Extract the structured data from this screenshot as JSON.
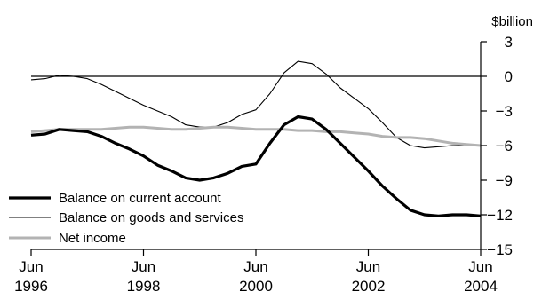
{
  "chart_data": {
    "type": "line",
    "y_unit": "$billion",
    "ylim": [
      -15,
      3
    ],
    "y_ticks": [
      3,
      0,
      -3,
      -6,
      -9,
      -12,
      -15
    ],
    "y_tick_labels": [
      "3",
      "0",
      "−3",
      "−6",
      "−9",
      "−12",
      "−15"
    ],
    "x_range": [
      1996.5,
      2004.5
    ],
    "x_ticks": [
      1996.5,
      1998.5,
      2000.5,
      2002.5,
      2004.5
    ],
    "x_tick_month": [
      "Jun",
      "Jun",
      "Jun",
      "Jun",
      "Jun"
    ],
    "x_tick_year": [
      "1996",
      "1998",
      "2000",
      "2002",
      "2004"
    ],
    "zero_line": true,
    "grid": false,
    "legend_placement": "bottom-left",
    "x": [
      1996.5,
      1996.75,
      1997.0,
      1997.25,
      1997.5,
      1997.75,
      1998.0,
      1998.25,
      1998.5,
      1998.75,
      1999.0,
      1999.25,
      1999.5,
      1999.75,
      2000.0,
      2000.25,
      2000.5,
      2000.75,
      2001.0,
      2001.25,
      2001.5,
      2001.75,
      2002.0,
      2002.25,
      2002.5,
      2002.75,
      2003.0,
      2003.25,
      2003.5,
      2003.75,
      2004.0,
      2004.25,
      2004.5
    ],
    "series": [
      {
        "name": "Balance on current account",
        "color": "#000000",
        "weight": "thick",
        "values": [
          -5.1,
          -5.0,
          -4.6,
          -4.7,
          -4.8,
          -5.2,
          -5.8,
          -6.3,
          -6.9,
          -7.7,
          -8.2,
          -8.8,
          -9.0,
          -8.8,
          -8.4,
          -7.8,
          -7.6,
          -5.8,
          -4.2,
          -3.5,
          -3.7,
          -4.6,
          -5.8,
          -7.0,
          -8.2,
          -9.5,
          -10.6,
          -11.6,
          -12.0,
          -12.1,
          -12.0,
          -12.0,
          -12.1
        ]
      },
      {
        "name": "Balance on goods and services",
        "color": "#000000",
        "weight": "thin",
        "values": [
          -0.3,
          -0.2,
          0.1,
          0.0,
          -0.2,
          -0.7,
          -1.3,
          -1.9,
          -2.5,
          -3.0,
          -3.5,
          -4.2,
          -4.4,
          -4.4,
          -4.0,
          -3.3,
          -2.9,
          -1.5,
          0.3,
          1.3,
          1.1,
          0.2,
          -1.0,
          -1.9,
          -2.8,
          -4.0,
          -5.3,
          -6.0,
          -6.2,
          -6.1,
          -6.0,
          -6.0,
          -6.0
        ]
      },
      {
        "name": "Net income",
        "color": "#b3b3b3",
        "weight": "medium",
        "values": [
          -4.8,
          -4.7,
          -4.6,
          -4.6,
          -4.6,
          -4.6,
          -4.5,
          -4.4,
          -4.4,
          -4.5,
          -4.6,
          -4.6,
          -4.5,
          -4.4,
          -4.4,
          -4.5,
          -4.6,
          -4.6,
          -4.6,
          -4.7,
          -4.7,
          -4.8,
          -4.8,
          -4.9,
          -5.0,
          -5.2,
          -5.3,
          -5.3,
          -5.4,
          -5.6,
          -5.8,
          -5.9,
          -6.0
        ]
      }
    ]
  }
}
